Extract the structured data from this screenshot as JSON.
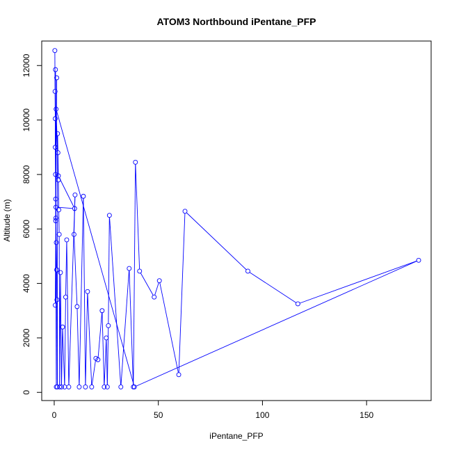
{
  "chart_data": {
    "type": "line",
    "title": "ATOM3 Northbound iPentane_PFP",
    "xlabel": "iPentane_PFP",
    "ylabel": "Altitude (m)",
    "xlim": [
      -6,
      181
    ],
    "ylim": [
      -300,
      12900
    ],
    "x_ticks": [
      0,
      50,
      100,
      150
    ],
    "y_ticks": [
      0,
      2000,
      4000,
      6000,
      8000,
      10000,
      12000
    ],
    "grid": false,
    "legend": "none",
    "series_color": "#0000ff",
    "marker": "open-circle",
    "series": [
      {
        "points": [
          [
            0.3,
            12550
          ],
          [
            0.4,
            11050
          ],
          [
            0.5,
            10050
          ],
          [
            0.5,
            9000
          ],
          [
            0.6,
            8000
          ],
          [
            0.7,
            7100
          ],
          [
            0.8,
            6400
          ],
          [
            1.0,
            5500
          ],
          [
            1.2,
            4500
          ],
          [
            1.3,
            3400
          ],
          [
            1.5,
            200
          ],
          [
            1.6,
            9500
          ],
          [
            1.8,
            8800
          ],
          [
            2.0,
            7800
          ],
          [
            2.2,
            6700
          ],
          [
            2.4,
            5800
          ],
          [
            2.6,
            200
          ],
          [
            3.0,
            4400
          ],
          [
            3.5,
            200
          ],
          [
            4.0,
            2400
          ],
          [
            5.0,
            200
          ],
          [
            5.5,
            3500
          ],
          [
            6.0,
            5600
          ],
          [
            7.0,
            200
          ],
          [
            10.0,
            7250
          ],
          [
            9.5,
            5800
          ],
          [
            11.0,
            3150
          ],
          [
            12.0,
            200
          ],
          [
            14.0,
            7200
          ],
          [
            15.0,
            200
          ],
          [
            16.0,
            3700
          ],
          [
            18.0,
            200
          ],
          [
            20.0,
            1250
          ],
          [
            21.0,
            1200
          ],
          [
            23.0,
            3000
          ],
          [
            24.0,
            200
          ],
          [
            25.0,
            2000
          ],
          [
            25.5,
            200
          ],
          [
            26.0,
            2450
          ],
          [
            26.5,
            6500
          ],
          [
            32.0,
            200
          ],
          [
            36.0,
            4550
          ],
          [
            38.0,
            200
          ],
          [
            39.0,
            8450
          ],
          [
            41.0,
            4450
          ],
          [
            48.0,
            3500
          ],
          [
            50.5,
            4100
          ],
          [
            59.8,
            650
          ],
          [
            62.8,
            6650
          ],
          [
            93.0,
            4450
          ],
          [
            117.0,
            3250
          ],
          [
            175.0,
            4850
          ],
          [
            38.5,
            200
          ],
          [
            0.9,
            10400
          ],
          [
            2.0,
            7950
          ],
          [
            9.8,
            6750
          ],
          [
            0.8,
            6800
          ],
          [
            1.0,
            200
          ],
          [
            0.6,
            11850
          ],
          [
            0.7,
            6300
          ],
          [
            1.2,
            11550
          ],
          [
            0.5,
            3200
          ]
        ]
      }
    ]
  }
}
